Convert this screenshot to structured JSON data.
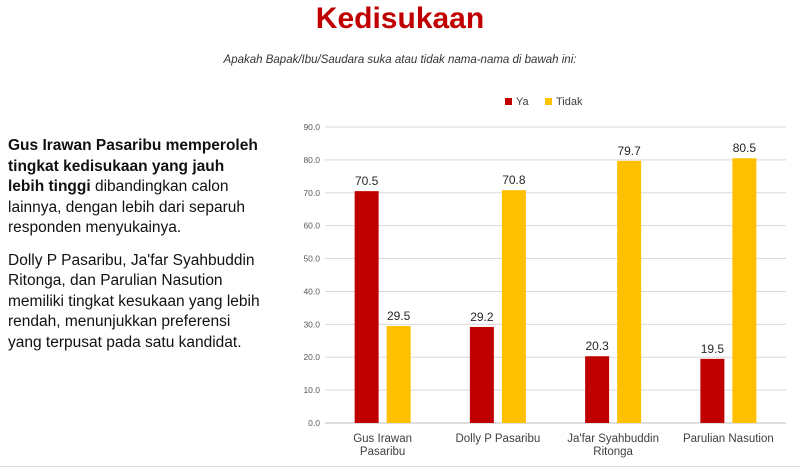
{
  "page": {
    "title": "Kedisukaan",
    "subtitle": "Apakah Bapak/Ibu/Saudara suka atau tidak nama-nama di bawah ini:"
  },
  "summary": {
    "p1_bold": "Gus Irawan Pasaribu memperoleh tingkat kedisukaan yang jauh lebih tinggi",
    "p1_rest": " dibandingkan calon lainnya, dengan lebih dari separuh responden menyukainya.",
    "p2": "Dolly P Pasaribu, Ja'far Syahbuddin Ritonga, dan Parulian Nasution memiliki tingkat kesukaan yang lebih rendah, menunjukkan preferensi yang terpusat pada satu kandidat."
  },
  "chart_data": {
    "type": "bar",
    "title": "",
    "xlabel": "",
    "ylabel": "",
    "ylim": [
      0,
      90
    ],
    "yticks": [
      "0.0",
      "10.0",
      "20.0",
      "30.0",
      "40.0",
      "50.0",
      "60.0",
      "70.0",
      "80.0",
      "90.0"
    ],
    "grid": true,
    "legend_position": "top",
    "categories": [
      [
        "Gus Irawan",
        "Pasaribu"
      ],
      [
        "Dolly P Pasaribu"
      ],
      [
        "Ja'far Syahbuddin",
        "Ritonga"
      ],
      [
        "Parulian Nasution"
      ]
    ],
    "series": [
      {
        "name": "Ya",
        "color": "#c00000",
        "values": [
          70.5,
          29.2,
          20.3,
          19.5
        ],
        "labels": [
          "70.5",
          "29.2",
          "20.3",
          "19.5"
        ]
      },
      {
        "name": "Tidak",
        "color": "#ffc000",
        "values": [
          29.5,
          70.8,
          79.7,
          80.5
        ],
        "labels": [
          "29.5",
          "70.8",
          "79.7",
          "80.5"
        ]
      }
    ]
  }
}
